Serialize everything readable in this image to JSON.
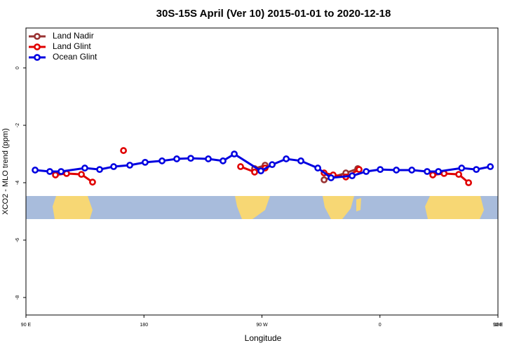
{
  "chart_data": {
    "type": "line",
    "title": "30S-15S April (Ver 10)   2015-01-01 to 2020-12-18",
    "x_label": "Longitude",
    "y_label": "XCO2 - MLO trend (ppm)",
    "xlim": [
      90,
      450
    ],
    "ylim": [
      -8.61,
      1.39
    ],
    "xticks": [
      {
        "value": 90,
        "label": "90 E"
      },
      {
        "value": 180,
        "label": "180"
      },
      {
        "value": 270,
        "label": "90 W"
      },
      {
        "value": 360,
        "label": "0"
      },
      {
        "value": 450,
        "label": "90 E"
      }
    ],
    "xticks_extra": [
      {
        "value": 450,
        "label": "180"
      }
    ],
    "yticks": [
      0,
      -2,
      -4,
      -6,
      -8
    ],
    "legend": "top-left",
    "series": [
      {
        "name": "Land Nadir",
        "color": "#993333",
        "x": [
          264.4,
          272.4,
          290,
          317.4,
          334.0,
          343.1
        ],
        "values": [
          -3.51,
          -3.39,
          null,
          -3.9,
          -3.66,
          -3.51
        ]
      },
      {
        "name": "Land Glint",
        "color": "#e00000",
        "x": [
          112.5,
          121.0,
          132.3,
          140.8,
          150,
          164.4,
          200,
          253.7,
          264.4,
          272.4,
          300,
          317.4,
          324.3,
          334.0,
          344.1,
          380,
          400.3,
          408.9,
          420.1,
          427.6
        ],
        "values": [
          -3.73,
          -3.68,
          -3.71,
          -3.98,
          null,
          -2.88,
          null,
          -3.44,
          -3.63,
          -3.49,
          null,
          -3.66,
          -3.73,
          -3.8,
          -3.54,
          null,
          -3.73,
          -3.68,
          -3.71,
          -4.0
        ]
      },
      {
        "name": "Ocean Glint",
        "color": "#0000e0",
        "x": [
          97.0,
          108.2,
          116.8,
          134.9,
          146.2,
          156.9,
          169.2,
          180.9,
          193.8,
          205.0,
          215.7,
          229.1,
          240.3,
          248.9,
          269.2,
          277.8,
          288.5,
          299.7,
          312.6,
          322.7,
          338.8,
          349.5,
          360.2,
          372.5,
          384.3,
          396.0,
          404.6,
          422.3,
          433.5,
          444.2
        ],
        "values": [
          -3.56,
          -3.61,
          -3.61,
          -3.49,
          -3.54,
          -3.44,
          -3.39,
          -3.29,
          -3.24,
          -3.17,
          -3.15,
          -3.17,
          -3.24,
          -3.0,
          -3.59,
          -3.37,
          -3.17,
          -3.24,
          -3.49,
          -3.83,
          -3.76,
          -3.61,
          -3.54,
          -3.56,
          -3.56,
          -3.61,
          -3.61,
          -3.49,
          -3.54,
          -3.44
        ]
      }
    ]
  }
}
